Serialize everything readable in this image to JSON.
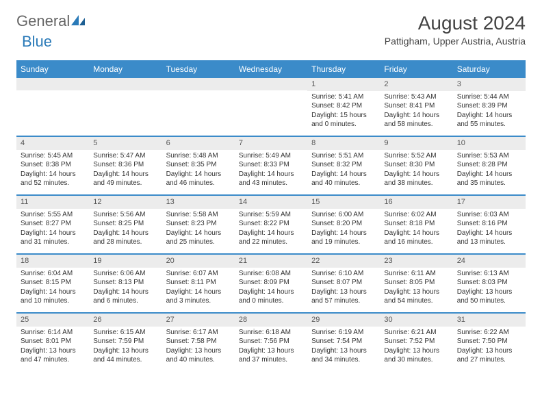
{
  "colors": {
    "header_bg": "#3b8bc9",
    "header_text": "#ffffff",
    "daynum_bg": "#ececec",
    "week_border": "#3b8bc9",
    "body_text": "#333333",
    "title_text": "#444444",
    "logo_gray": "#666666",
    "logo_blue": "#2a7ab8",
    "page_bg": "#ffffff"
  },
  "typography": {
    "title_fontsize": 28,
    "subtitle_fontsize": 14,
    "dayheader_fontsize": 12,
    "cell_fontsize": 10,
    "logo_fontsize": 22
  },
  "logo": {
    "text1": "General",
    "text2": "Blue"
  },
  "title": "August 2024",
  "subtitle": "Pattigham, Upper Austria, Austria",
  "day_names": [
    "Sunday",
    "Monday",
    "Tuesday",
    "Wednesday",
    "Thursday",
    "Friday",
    "Saturday"
  ],
  "weeks": [
    [
      {
        "day": null
      },
      {
        "day": null
      },
      {
        "day": null
      },
      {
        "day": null
      },
      {
        "day": "1",
        "sunrise": "Sunrise: 5:41 AM",
        "sunset": "Sunset: 8:42 PM",
        "daylight1": "Daylight: 15 hours",
        "daylight2": "and 0 minutes."
      },
      {
        "day": "2",
        "sunrise": "Sunrise: 5:43 AM",
        "sunset": "Sunset: 8:41 PM",
        "daylight1": "Daylight: 14 hours",
        "daylight2": "and 58 minutes."
      },
      {
        "day": "3",
        "sunrise": "Sunrise: 5:44 AM",
        "sunset": "Sunset: 8:39 PM",
        "daylight1": "Daylight: 14 hours",
        "daylight2": "and 55 minutes."
      }
    ],
    [
      {
        "day": "4",
        "sunrise": "Sunrise: 5:45 AM",
        "sunset": "Sunset: 8:38 PM",
        "daylight1": "Daylight: 14 hours",
        "daylight2": "and 52 minutes."
      },
      {
        "day": "5",
        "sunrise": "Sunrise: 5:47 AM",
        "sunset": "Sunset: 8:36 PM",
        "daylight1": "Daylight: 14 hours",
        "daylight2": "and 49 minutes."
      },
      {
        "day": "6",
        "sunrise": "Sunrise: 5:48 AM",
        "sunset": "Sunset: 8:35 PM",
        "daylight1": "Daylight: 14 hours",
        "daylight2": "and 46 minutes."
      },
      {
        "day": "7",
        "sunrise": "Sunrise: 5:49 AM",
        "sunset": "Sunset: 8:33 PM",
        "daylight1": "Daylight: 14 hours",
        "daylight2": "and 43 minutes."
      },
      {
        "day": "8",
        "sunrise": "Sunrise: 5:51 AM",
        "sunset": "Sunset: 8:32 PM",
        "daylight1": "Daylight: 14 hours",
        "daylight2": "and 40 minutes."
      },
      {
        "day": "9",
        "sunrise": "Sunrise: 5:52 AM",
        "sunset": "Sunset: 8:30 PM",
        "daylight1": "Daylight: 14 hours",
        "daylight2": "and 38 minutes."
      },
      {
        "day": "10",
        "sunrise": "Sunrise: 5:53 AM",
        "sunset": "Sunset: 8:28 PM",
        "daylight1": "Daylight: 14 hours",
        "daylight2": "and 35 minutes."
      }
    ],
    [
      {
        "day": "11",
        "sunrise": "Sunrise: 5:55 AM",
        "sunset": "Sunset: 8:27 PM",
        "daylight1": "Daylight: 14 hours",
        "daylight2": "and 31 minutes."
      },
      {
        "day": "12",
        "sunrise": "Sunrise: 5:56 AM",
        "sunset": "Sunset: 8:25 PM",
        "daylight1": "Daylight: 14 hours",
        "daylight2": "and 28 minutes."
      },
      {
        "day": "13",
        "sunrise": "Sunrise: 5:58 AM",
        "sunset": "Sunset: 8:23 PM",
        "daylight1": "Daylight: 14 hours",
        "daylight2": "and 25 minutes."
      },
      {
        "day": "14",
        "sunrise": "Sunrise: 5:59 AM",
        "sunset": "Sunset: 8:22 PM",
        "daylight1": "Daylight: 14 hours",
        "daylight2": "and 22 minutes."
      },
      {
        "day": "15",
        "sunrise": "Sunrise: 6:00 AM",
        "sunset": "Sunset: 8:20 PM",
        "daylight1": "Daylight: 14 hours",
        "daylight2": "and 19 minutes."
      },
      {
        "day": "16",
        "sunrise": "Sunrise: 6:02 AM",
        "sunset": "Sunset: 8:18 PM",
        "daylight1": "Daylight: 14 hours",
        "daylight2": "and 16 minutes."
      },
      {
        "day": "17",
        "sunrise": "Sunrise: 6:03 AM",
        "sunset": "Sunset: 8:16 PM",
        "daylight1": "Daylight: 14 hours",
        "daylight2": "and 13 minutes."
      }
    ],
    [
      {
        "day": "18",
        "sunrise": "Sunrise: 6:04 AM",
        "sunset": "Sunset: 8:15 PM",
        "daylight1": "Daylight: 14 hours",
        "daylight2": "and 10 minutes."
      },
      {
        "day": "19",
        "sunrise": "Sunrise: 6:06 AM",
        "sunset": "Sunset: 8:13 PM",
        "daylight1": "Daylight: 14 hours",
        "daylight2": "and 6 minutes."
      },
      {
        "day": "20",
        "sunrise": "Sunrise: 6:07 AM",
        "sunset": "Sunset: 8:11 PM",
        "daylight1": "Daylight: 14 hours",
        "daylight2": "and 3 minutes."
      },
      {
        "day": "21",
        "sunrise": "Sunrise: 6:08 AM",
        "sunset": "Sunset: 8:09 PM",
        "daylight1": "Daylight: 14 hours",
        "daylight2": "and 0 minutes."
      },
      {
        "day": "22",
        "sunrise": "Sunrise: 6:10 AM",
        "sunset": "Sunset: 8:07 PM",
        "daylight1": "Daylight: 13 hours",
        "daylight2": "and 57 minutes."
      },
      {
        "day": "23",
        "sunrise": "Sunrise: 6:11 AM",
        "sunset": "Sunset: 8:05 PM",
        "daylight1": "Daylight: 13 hours",
        "daylight2": "and 54 minutes."
      },
      {
        "day": "24",
        "sunrise": "Sunrise: 6:13 AM",
        "sunset": "Sunset: 8:03 PM",
        "daylight1": "Daylight: 13 hours",
        "daylight2": "and 50 minutes."
      }
    ],
    [
      {
        "day": "25",
        "sunrise": "Sunrise: 6:14 AM",
        "sunset": "Sunset: 8:01 PM",
        "daylight1": "Daylight: 13 hours",
        "daylight2": "and 47 minutes."
      },
      {
        "day": "26",
        "sunrise": "Sunrise: 6:15 AM",
        "sunset": "Sunset: 7:59 PM",
        "daylight1": "Daylight: 13 hours",
        "daylight2": "and 44 minutes."
      },
      {
        "day": "27",
        "sunrise": "Sunrise: 6:17 AM",
        "sunset": "Sunset: 7:58 PM",
        "daylight1": "Daylight: 13 hours",
        "daylight2": "and 40 minutes."
      },
      {
        "day": "28",
        "sunrise": "Sunrise: 6:18 AM",
        "sunset": "Sunset: 7:56 PM",
        "daylight1": "Daylight: 13 hours",
        "daylight2": "and 37 minutes."
      },
      {
        "day": "29",
        "sunrise": "Sunrise: 6:19 AM",
        "sunset": "Sunset: 7:54 PM",
        "daylight1": "Daylight: 13 hours",
        "daylight2": "and 34 minutes."
      },
      {
        "day": "30",
        "sunrise": "Sunrise: 6:21 AM",
        "sunset": "Sunset: 7:52 PM",
        "daylight1": "Daylight: 13 hours",
        "daylight2": "and 30 minutes."
      },
      {
        "day": "31",
        "sunrise": "Sunrise: 6:22 AM",
        "sunset": "Sunset: 7:50 PM",
        "daylight1": "Daylight: 13 hours",
        "daylight2": "and 27 minutes."
      }
    ]
  ]
}
